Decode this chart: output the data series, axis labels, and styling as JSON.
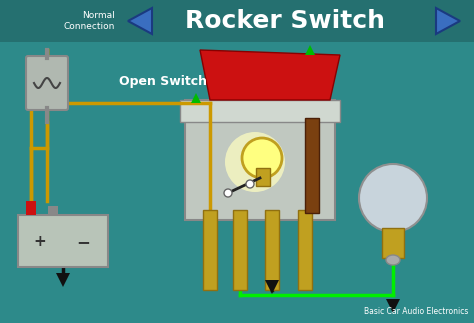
{
  "bg_color": "#2d8a8a",
  "title": "Rocker Switch",
  "title_color": "white",
  "subtitle": "Normal\nConnection",
  "subtitle_color": "white",
  "open_switch_label": "Open Switch",
  "open_switch_color": "white",
  "credit": "Basic Car Audio Electronics",
  "credit_color": "white",
  "arrow_blue": "#3a6ec0",
  "arrow_blue_dark": "#1a3a80",
  "arrow_green_small": "#00bb00",
  "wire_yellow": "#cc9900",
  "wire_green": "#00ee00",
  "switch_body_color": "#c0c8c0",
  "switch_top_color": "#cc1111",
  "pin_color": "#c0a020",
  "pin_edge": "#907010",
  "battery_body": "#b8c4b8",
  "battery_edge": "#888888",
  "battery_pos_color": "#cc1111",
  "battery_neg_color": "#888888",
  "fuse_color": "#b0b8b0",
  "fuse_edge": "#888888",
  "bulb_glass": "#c8d4dc",
  "bulb_base_color": "#c0a020",
  "bulb_glow_outer": "#ffffc0",
  "bulb_glow_inner": "#ffff80",
  "brown_bracket": "#7a4010",
  "black": "#111111",
  "dark_gray": "#555555"
}
